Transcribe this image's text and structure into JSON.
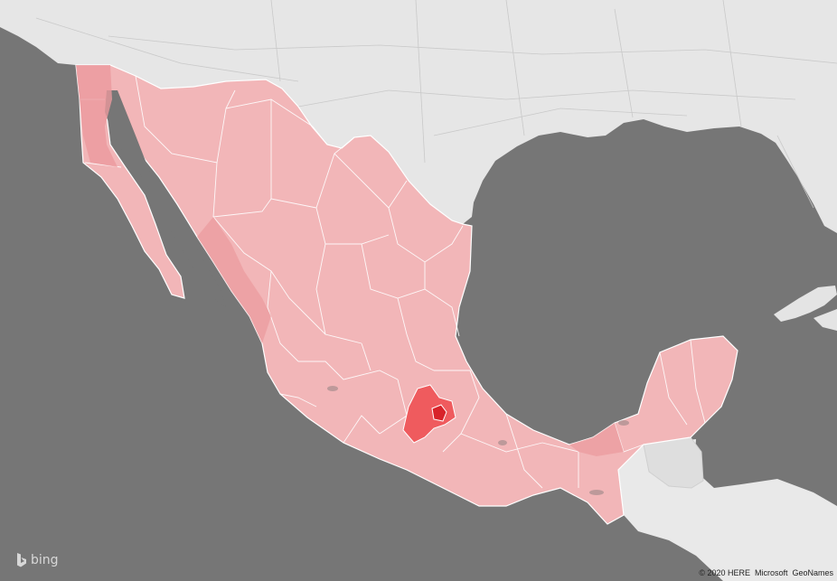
{
  "map": {
    "colors": {
      "ocean": "#767676",
      "land": "#e6e6e6",
      "mexico_base": "#f2b6b8",
      "borders": "#ffffff",
      "state_highlight": "#ef5b5e",
      "state_darkest": "#d8232a"
    },
    "regions": [
      {
        "name": "United States",
        "kind": "neighbor"
      },
      {
        "name": "Mexico",
        "kind": "filled-country"
      },
      {
        "name": "State of Mexico",
        "kind": "highlight"
      },
      {
        "name": "Mexico City",
        "kind": "highlight-darkest"
      },
      {
        "name": "Guatemala",
        "kind": "neighbor"
      },
      {
        "name": "Belize",
        "kind": "neighbor"
      },
      {
        "name": "Cuba",
        "kind": "neighbor"
      }
    ]
  },
  "attribution": "© 2020 HERE  Microsoft  GeoNames",
  "logo": {
    "text": "bing",
    "icon": "bing-logo-icon"
  }
}
